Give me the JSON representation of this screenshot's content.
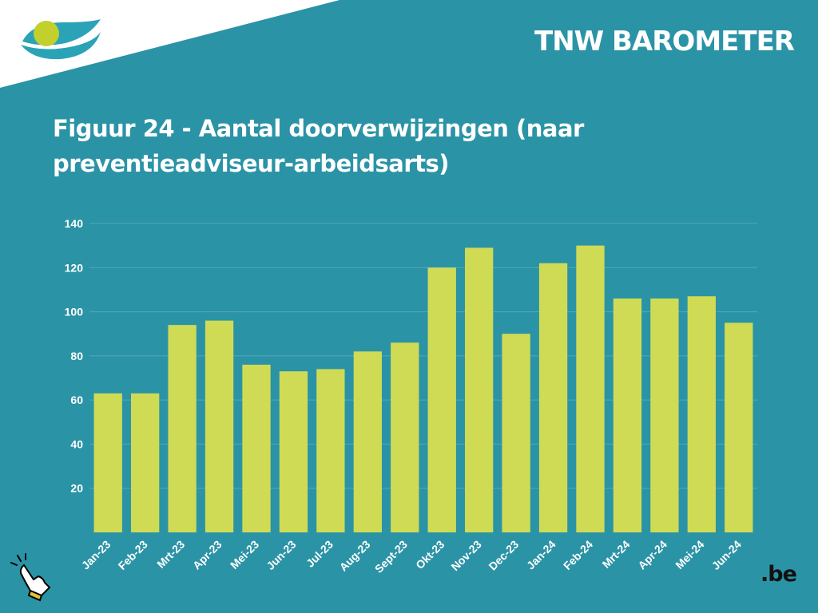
{
  "header": {
    "brand": "TNW BAROMETER"
  },
  "title": "Figuur 24 - Aantal doorverwijzingen (naar preventieadviseur-arbeidsarts)",
  "logos": {
    "be": ".be"
  },
  "icons": {
    "pointer": "hand-pointer-icon",
    "corner_logo": "eye-logo-icon"
  },
  "colors": {
    "background": "#2b93a6",
    "bar": "#cfdb55",
    "grid": "#4fa9b8",
    "text": "#ffffff"
  },
  "chart_data": {
    "type": "bar",
    "categories": [
      "Jan-23",
      "Feb-23",
      "Mrt-23",
      "Apr-23",
      "Mei-23",
      "Jun-23",
      "Jul-23",
      "Aug-23",
      "Sept-23",
      "Okt-23",
      "Nov-23",
      "Dec-23",
      "Jan-24",
      "Feb-24",
      "Mrt-24",
      "Apr-24",
      "Mei-24",
      "Jun-24"
    ],
    "values": [
      63,
      63,
      94,
      96,
      76,
      73,
      74,
      82,
      86,
      120,
      129,
      90,
      122,
      130,
      106,
      106,
      107,
      95
    ],
    "ylim": [
      0,
      140
    ],
    "yticks": [
      20,
      40,
      60,
      80,
      100,
      120,
      140
    ],
    "grid": true,
    "legend": "none"
  }
}
